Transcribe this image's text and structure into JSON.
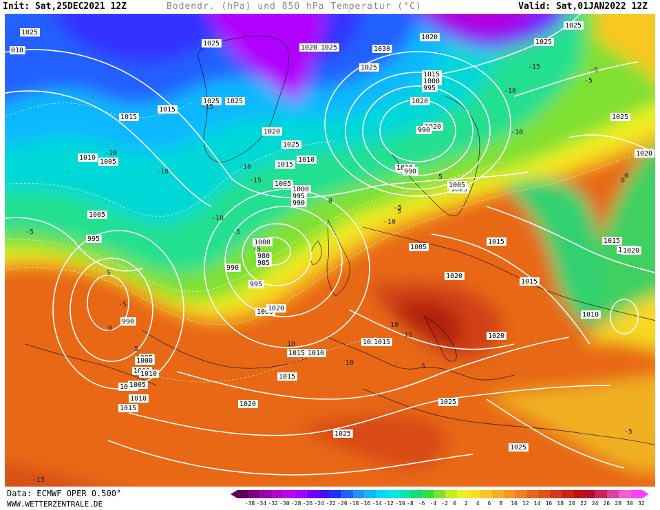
{
  "header": {
    "init": "Init: Sat,25DEC2021 12Z",
    "title": "Bodendr. (hPa) und 850 hPa Temperatur (°C)",
    "valid": "Valid: Sat,01JAN2022 12Z"
  },
  "footer": {
    "data_source": "Data: ECMWF OPER 0.500°",
    "website": "WWW.WETTERZENTRALE.DE"
  },
  "color_scale": {
    "ticks": [
      "-38",
      "-34",
      "-32",
      "-30",
      "-28",
      "-26",
      "-24",
      "-22",
      "-20",
      "-18",
      "-16",
      "-14",
      "-12",
      "-10",
      "-8",
      "-6",
      "-4",
      "-2",
      "0",
      "2",
      "4",
      "6",
      "8",
      "10",
      "12",
      "14",
      "16",
      "18",
      "20",
      "22",
      "24",
      "26",
      "28",
      "30",
      "32"
    ],
    "colors": [
      "#5a005a",
      "#7a0088",
      "#9a00b0",
      "#b000d0",
      "#c000f0",
      "#a000ff",
      "#7000ff",
      "#4010ff",
      "#2030ff",
      "#2060ff",
      "#2090ff",
      "#10b8ff",
      "#00d8ff",
      "#00e8e0",
      "#00e8b0",
      "#10e070",
      "#30e040",
      "#80e030",
      "#c0f020",
      "#f0f020",
      "#f8e020",
      "#f8c820",
      "#f8b020",
      "#f89820",
      "#f08020",
      "#e86818",
      "#e05018",
      "#d83818",
      "#d02018",
      "#c01010",
      "#b01030",
      "#d02060",
      "#e040a0",
      "#f060d0",
      "#ff40ff"
    ]
  },
  "pressure_labels": [
    "1015",
    "010",
    "1025",
    "1025",
    "1025",
    "1020",
    "1025",
    "1030",
    "1025",
    "1020",
    "1025",
    "1015",
    "1015",
    "1010",
    "1005",
    "995",
    "990",
    "1005",
    "1000",
    "995",
    "1015",
    "1025",
    "1020",
    "1025",
    "1020",
    "1015",
    "1010",
    "1005",
    "1000",
    "995",
    "990",
    "1010",
    "1020",
    "1025",
    "1020",
    "1015",
    "1025",
    "1015",
    "1005",
    "1020",
    "1000",
    "1000",
    "995",
    "990",
    "985",
    "980",
    "990",
    "995",
    "1000",
    "1005",
    "1010",
    "1015",
    "1020",
    "1025",
    "1020",
    "1015",
    "1015",
    "1010",
    "1015",
    "1005",
    "1000",
    "990",
    "1015",
    "1010",
    "1005",
    "1010",
    "1015",
    "1020",
    "1025",
    "1025",
    "1025",
    "1020",
    "1025"
  ],
  "temperature_labels": [
    "-10",
    "-15",
    "-10",
    "-5",
    "-10",
    "-15",
    "-10",
    "-5",
    "-5",
    "-10",
    "-15",
    "-10",
    "-5",
    "-10",
    "-5",
    "0",
    "-5",
    "5",
    "0",
    "5",
    "10",
    "-5",
    "5",
    "10",
    "5",
    "0",
    "-5",
    "10",
    "15",
    "-15",
    "5",
    "0"
  ]
}
